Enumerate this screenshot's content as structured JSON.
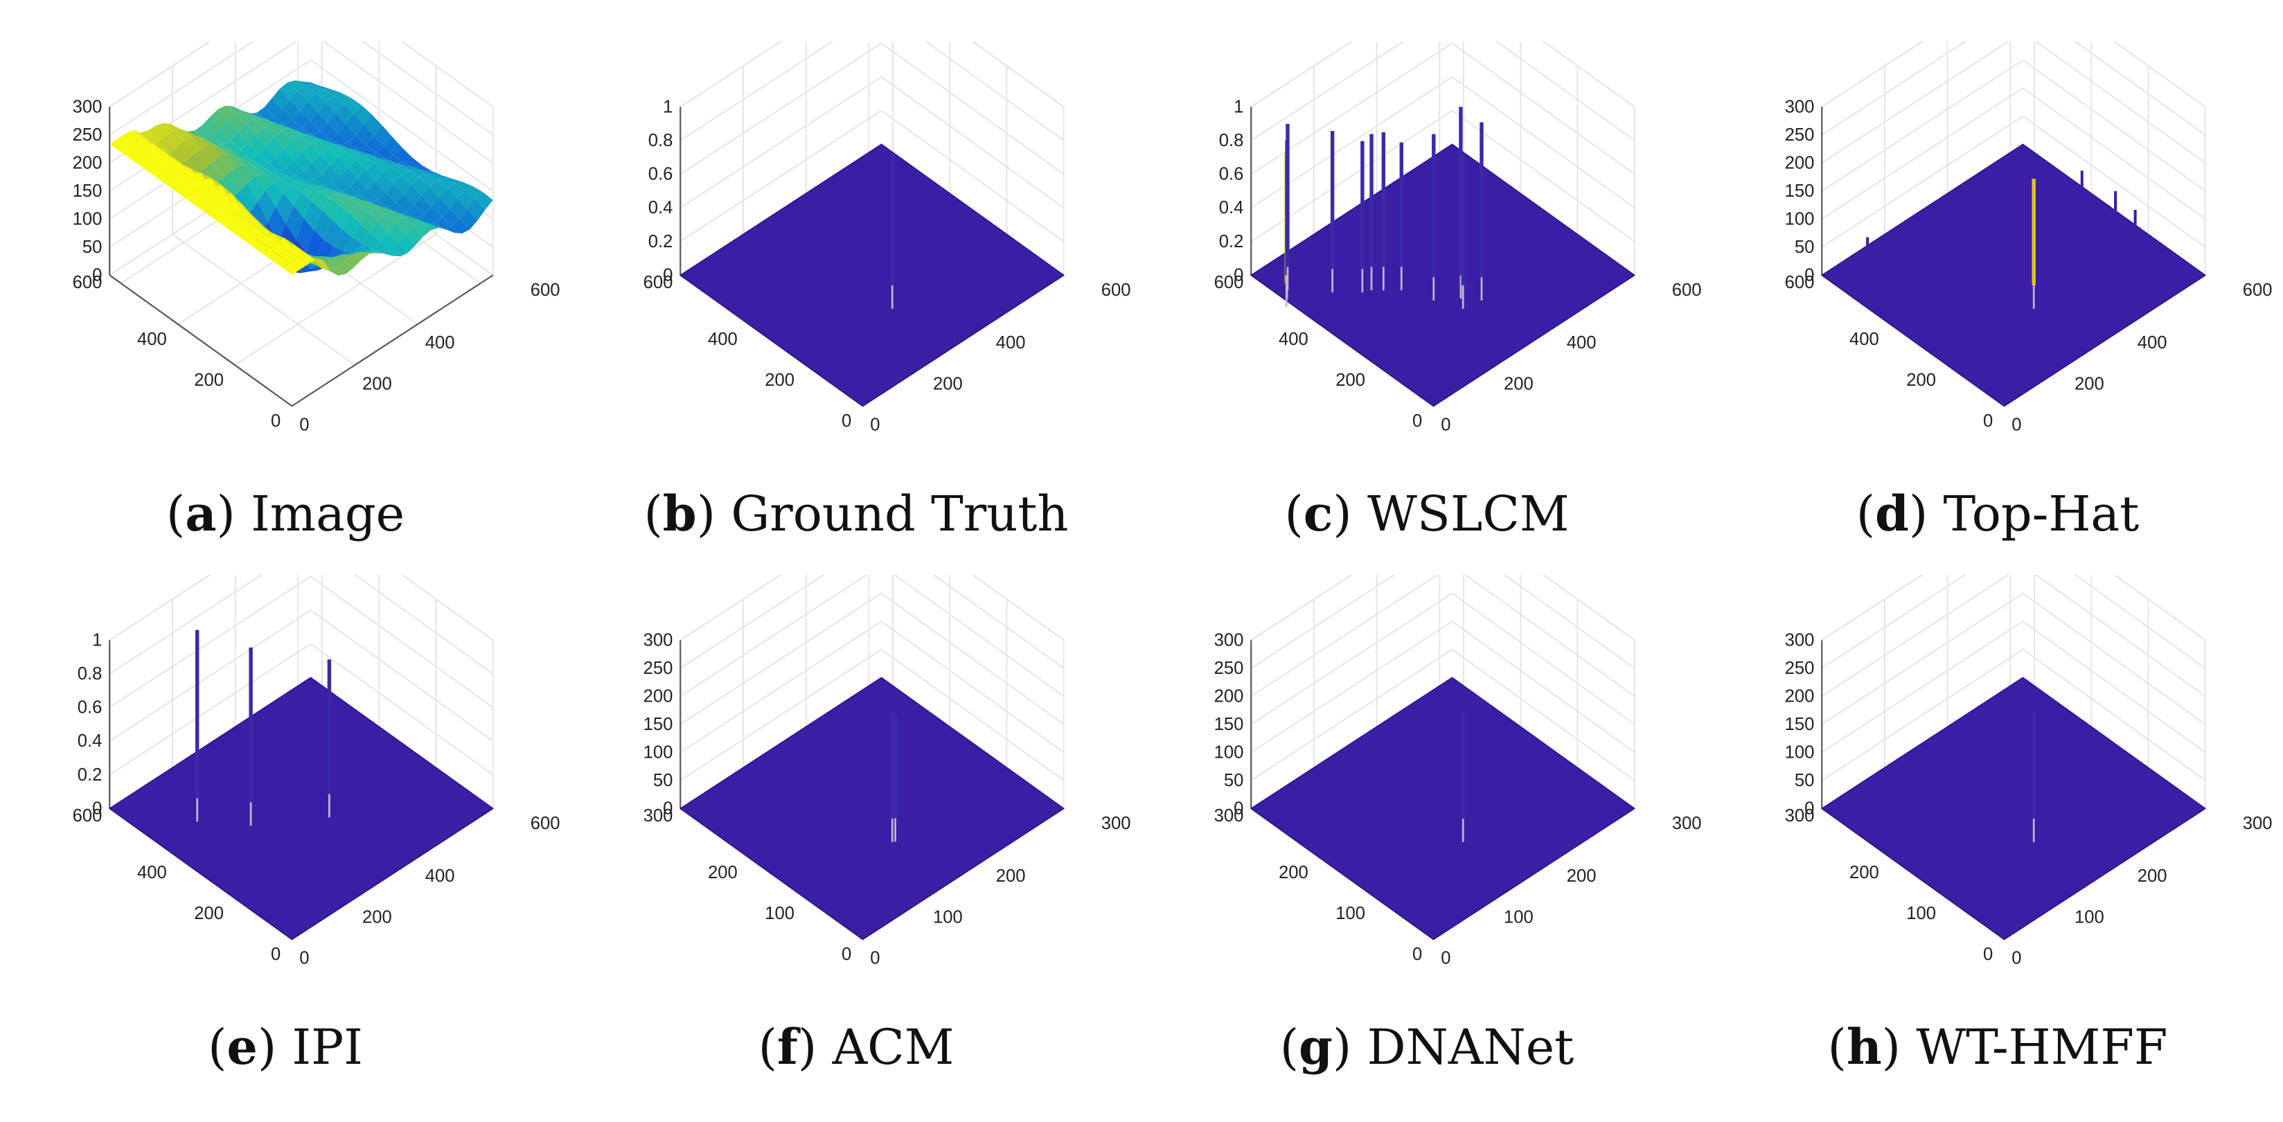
{
  "figure": {
    "panels": [
      {
        "id": "a",
        "letter": "a",
        "method": "Image",
        "zmax": 300,
        "zticks": [
          "0",
          "50",
          "100",
          "150",
          "200",
          "250",
          "300"
        ],
        "xyticks": [
          "0",
          "200",
          "400",
          "600"
        ],
        "xymax": 640,
        "surface": "image"
      },
      {
        "id": "b",
        "letter": "b",
        "method": "Ground Truth",
        "zmax": 1,
        "zticks": [
          "0",
          "0.2",
          "0.4",
          "0.6",
          "0.8",
          "1"
        ],
        "xyticks": [
          "0",
          "200",
          "400",
          "600"
        ],
        "xymax": 640,
        "surface": "flat",
        "spikes": [
          {
            "x": 330,
            "y": 260,
            "z": 0.78
          }
        ]
      },
      {
        "id": "c",
        "letter": "c",
        "method": "WSLCM",
        "zmax": 1,
        "zticks": [
          "0",
          "0.2",
          "0.4",
          "0.6",
          "0.8",
          "1"
        ],
        "xyticks": [
          "0",
          "200",
          "400",
          "600"
        ],
        "xymax": 640,
        "surface": "flat",
        "spikes": [
          {
            "x": 40,
            "y": 560,
            "z": 0.78,
            "color": "#c9c200"
          },
          {
            "x": 60,
            "y": 580,
            "z": 0.8
          },
          {
            "x": 80,
            "y": 600,
            "z": 0.85
          },
          {
            "x": 150,
            "y": 520,
            "z": 0.82
          },
          {
            "x": 200,
            "y": 470,
            "z": 0.76
          },
          {
            "x": 220,
            "y": 460,
            "z": 0.79
          },
          {
            "x": 240,
            "y": 440,
            "z": 0.8
          },
          {
            "x": 270,
            "y": 410,
            "z": 0.74
          },
          {
            "x": 300,
            "y": 330,
            "z": 0.85
          },
          {
            "x": 350,
            "y": 290,
            "z": 1.0
          },
          {
            "x": 380,
            "y": 250,
            "z": 0.92
          },
          {
            "x": 330,
            "y": 260,
            "z": 0.78
          }
        ]
      },
      {
        "id": "d",
        "letter": "d",
        "method": "Top-Hat",
        "zmax": 300,
        "zticks": [
          "0",
          "50",
          "100",
          "150",
          "200",
          "250",
          "300"
        ],
        "xyticks": [
          "0",
          "200",
          "400",
          "600"
        ],
        "xymax": 640,
        "surface": "noisy",
        "spikes": [
          {
            "x": 330,
            "y": 260,
            "z": 190,
            "color": "#d8c81a"
          }
        ]
      },
      {
        "id": "e",
        "letter": "e",
        "method": "IPI",
        "zmax": 1,
        "zticks": [
          "0",
          "0.2",
          "0.4",
          "0.6",
          "0.8",
          "1"
        ],
        "xyticks": [
          "0",
          "200",
          "400",
          "600"
        ],
        "xymax": 640,
        "surface": "flat",
        "spikes": [
          {
            "x": 170,
            "y": 520,
            "z": 1.0
          },
          {
            "x": 250,
            "y": 420,
            "z": 0.92
          },
          {
            "x": 400,
            "y": 310,
            "z": 0.8
          }
        ]
      },
      {
        "id": "f",
        "letter": "f",
        "method": "ACM",
        "zmax": 300,
        "zticks": [
          "0",
          "50",
          "100",
          "150",
          "200",
          "250",
          "300"
        ],
        "xyticks": [
          "0",
          "100",
          "200",
          "300"
        ],
        "xymax": 320,
        "surface": "flat",
        "spikes": [
          {
            "x": 165,
            "y": 130,
            "z": 190
          },
          {
            "x": 168,
            "y": 128,
            "z": 185
          }
        ]
      },
      {
        "id": "g",
        "letter": "g",
        "method": "DNANet",
        "zmax": 300,
        "zticks": [
          "0",
          "50",
          "100",
          "150",
          "200",
          "250",
          "300"
        ],
        "xyticks": [
          "0",
          "100",
          "200",
          "300"
        ],
        "xymax": 320,
        "surface": "flat",
        "spikes": [
          {
            "x": 165,
            "y": 130,
            "z": 190
          }
        ]
      },
      {
        "id": "h",
        "letter": "h",
        "method": "WT-HMFF",
        "zmax": 300,
        "zticks": [
          "0",
          "50",
          "100",
          "150",
          "200",
          "250",
          "300"
        ],
        "xyticks": [
          "0",
          "100",
          "200",
          "300"
        ],
        "xymax": 320,
        "surface": "flat",
        "spikes": [
          {
            "x": 165,
            "y": 130,
            "z": 190
          }
        ]
      }
    ]
  },
  "chart_data": [
    {
      "type": "surface",
      "title": "(a) Image",
      "zlim": [
        0,
        300
      ],
      "xlim": [
        0,
        600
      ],
      "ylim": [
        0,
        600
      ],
      "description_values": {
        "z_range_estimate": [
          60,
          230
        ]
      }
    },
    {
      "type": "surface",
      "title": "(b) Ground Truth",
      "zlim": [
        0,
        1
      ],
      "xlim": [
        0,
        600
      ],
      "ylim": [
        0,
        600
      ],
      "peaks": [
        0.78
      ]
    },
    {
      "type": "surface",
      "title": "(c) WSLCM",
      "zlim": [
        0,
        1
      ],
      "xlim": [
        0,
        600
      ],
      "ylim": [
        0,
        600
      ],
      "peaks": [
        0.78,
        0.8,
        0.85,
        0.82,
        0.76,
        0.79,
        0.8,
        0.74,
        0.85,
        1.0,
        0.92,
        0.78
      ]
    },
    {
      "type": "surface",
      "title": "(d) Top-Hat",
      "zlim": [
        0,
        300
      ],
      "xlim": [
        0,
        600
      ],
      "ylim": [
        0,
        600
      ],
      "peaks": [
        190
      ]
    },
    {
      "type": "surface",
      "title": "(e) IPI",
      "zlim": [
        0,
        1
      ],
      "xlim": [
        0,
        600
      ],
      "ylim": [
        0,
        600
      ],
      "peaks": [
        1.0,
        0.92,
        0.8
      ]
    },
    {
      "type": "surface",
      "title": "(f) ACM",
      "zlim": [
        0,
        300
      ],
      "xlim": [
        0,
        300
      ],
      "ylim": [
        0,
        300
      ],
      "peaks": [
        190
      ]
    },
    {
      "type": "surface",
      "title": "(g) DNANet",
      "zlim": [
        0,
        300
      ],
      "xlim": [
        0,
        300
      ],
      "ylim": [
        0,
        300
      ],
      "peaks": [
        190
      ]
    },
    {
      "type": "surface",
      "title": "(h) WT-HMFF",
      "zlim": [
        0,
        300
      ],
      "xlim": [
        0,
        300
      ],
      "ylim": [
        0,
        300
      ],
      "peaks": [
        190
      ]
    }
  ]
}
